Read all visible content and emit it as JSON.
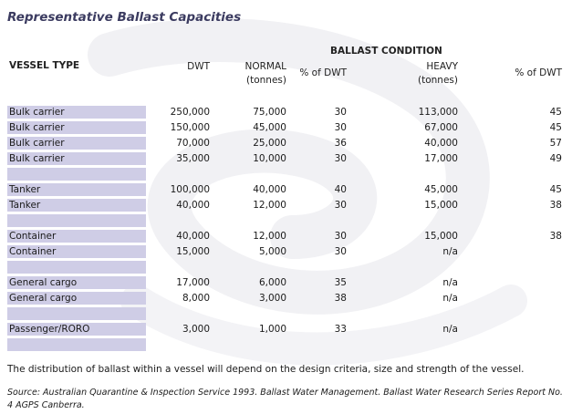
{
  "title": "Representative Ballast Capacities",
  "headers": {
    "ballast_condition": "BALLAST CONDITION",
    "vessel_type": "VESSEL TYPE",
    "dwt": "DWT",
    "normal": "NORMAL",
    "normal_unit": "(tonnes)",
    "pct_dwt_1": "% of DWT",
    "heavy": "HEAVY",
    "heavy_unit": "(tonnes)",
    "pct_dwt_2": "% of DWT"
  },
  "rows": [
    {
      "vessel": "Bulk carrier",
      "dwt": "250,000",
      "normal": "75,000",
      "pct_normal": "30",
      "heavy": "113,000",
      "pct_heavy": "45"
    },
    {
      "vessel": "Bulk carrier",
      "dwt": "150,000",
      "normal": "45,000",
      "pct_normal": "30",
      "heavy": "67,000",
      "pct_heavy": "45"
    },
    {
      "vessel": "Bulk carrier",
      "dwt": "70,000",
      "normal": "25,000",
      "pct_normal": "36",
      "heavy": "40,000",
      "pct_heavy": "57"
    },
    {
      "vessel": "Bulk carrier",
      "dwt": "35,000",
      "normal": "10,000",
      "pct_normal": "30",
      "heavy": "17,000",
      "pct_heavy": "49"
    },
    {
      "vessel": "",
      "dwt": "",
      "normal": "",
      "pct_normal": "",
      "heavy": "",
      "pct_heavy": ""
    },
    {
      "vessel": "Tanker",
      "dwt": "100,000",
      "normal": "40,000",
      "pct_normal": "40",
      "heavy": "45,000",
      "pct_heavy": "45"
    },
    {
      "vessel": "Tanker",
      "dwt": "40,000",
      "normal": "12,000",
      "pct_normal": "30",
      "heavy": "15,000",
      "pct_heavy": "38"
    },
    {
      "vessel": "",
      "dwt": "",
      "normal": "",
      "pct_normal": "",
      "heavy": "",
      "pct_heavy": ""
    },
    {
      "vessel": "Container",
      "dwt": "40,000",
      "normal": "12,000",
      "pct_normal": "30",
      "heavy": "15,000",
      "pct_heavy": "38"
    },
    {
      "vessel": "Container",
      "dwt": "15,000",
      "normal": "5,000",
      "pct_normal": "30",
      "heavy": "n/a",
      "pct_heavy": ""
    },
    {
      "vessel": "",
      "dwt": "",
      "normal": "",
      "pct_normal": "",
      "heavy": "",
      "pct_heavy": ""
    },
    {
      "vessel": "General cargo",
      "dwt": "17,000",
      "normal": "6,000",
      "pct_normal": "35",
      "heavy": "n/a",
      "pct_heavy": ""
    },
    {
      "vessel": "General cargo",
      "dwt": "8,000",
      "normal": "3,000",
      "pct_normal": "38",
      "heavy": "n/a",
      "pct_heavy": ""
    },
    {
      "vessel": "",
      "dwt": "",
      "normal": "",
      "pct_normal": "",
      "heavy": "",
      "pct_heavy": ""
    },
    {
      "vessel": "Passenger/RORO",
      "dwt": "3,000",
      "normal": "1,000",
      "pct_normal": "33",
      "heavy": "n/a",
      "pct_heavy": ""
    },
    {
      "vessel": "",
      "dwt": "",
      "normal": "",
      "pct_normal": "",
      "heavy": "",
      "pct_heavy": ""
    }
  ],
  "note": "The distribution of ballast within a vessel will depend on the design criteria, size and strength of the vessel.",
  "source": "Source: Australian Quarantine & Inspection Service 1993. Ballast Water Management. Ballast Water Research Series Report No. 4 AGPS Canberra.",
  "colors": {
    "row_band": "#cfcde6",
    "title": "#3b3b60"
  }
}
